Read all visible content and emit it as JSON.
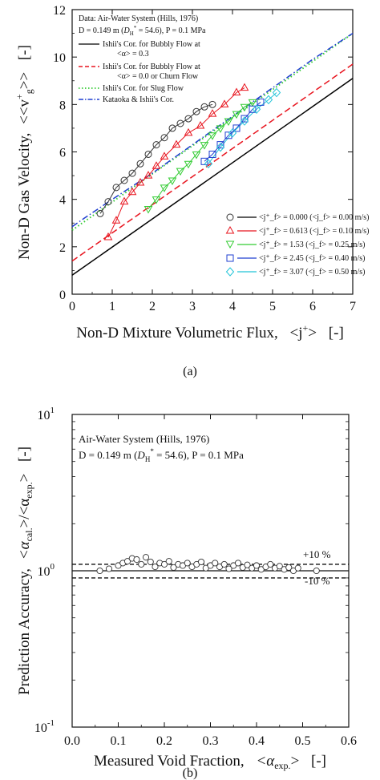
{
  "chart_data": [
    {
      "type": "line",
      "panel_caption": "(a)",
      "xlabel": "Non-D Mixture Volumetric Flux,  <j⁺>  [-]",
      "ylabel": "Non-D Gas Velocity,  <<v⁺_g>>  [-]",
      "xlim": [
        0,
        7
      ],
      "ylim": [
        0,
        12
      ],
      "xticks": [
        "0",
        "1",
        "2",
        "3",
        "4",
        "5",
        "6",
        "7"
      ],
      "yticks": [
        "0",
        "2",
        "4",
        "6",
        "8",
        "10",
        "12"
      ],
      "annotations": [
        "Data: Air-Water System (Hills, 1976)",
        "D = 0.149 m (D*H = 54.6), P = 0.1 MPa"
      ],
      "correlations": [
        {
          "name": "Ishii's Cor. for Bubbly Flow at <α> = 0.3",
          "style": "solid",
          "color": "#000000",
          "x": [
            0,
            7
          ],
          "y": [
            0.8,
            9.1
          ]
        },
        {
          "name": "Ishii's Cor. for Bubbly Flow at <α> = 0.0 or Churn Flow",
          "style": "dashed",
          "color": "#e8141e",
          "x": [
            0,
            7
          ],
          "y": [
            1.4,
            9.7
          ]
        },
        {
          "name": "Ishii's Cor. for Slug Flow",
          "style": "dotted",
          "color": "#33cc33",
          "x": [
            0,
            7
          ],
          "y": [
            2.7,
            11.0
          ]
        },
        {
          "name": "Kataoka & Ishii's Cor.",
          "style": "dashdot",
          "color": "#1f3fd0",
          "x": [
            0,
            0.3,
            1.0,
            2.0,
            3.0,
            4.0,
            5.0,
            6.0,
            7.0
          ],
          "y": [
            2.85,
            3.2,
            4.0,
            5.1,
            6.3,
            7.5,
            8.7,
            9.9,
            11.0
          ]
        }
      ],
      "series": [
        {
          "name": "<j⁺_f> = 0.000 (<j_f> = 0.00 m/s)",
          "marker": "circle",
          "color": "#333333",
          "points": [
            [
              0.7,
              3.4
            ],
            [
              0.9,
              3.9
            ],
            [
              1.1,
              4.5
            ],
            [
              1.3,
              4.8
            ],
            [
              1.5,
              5.1
            ],
            [
              1.7,
              5.5
            ],
            [
              1.9,
              5.9
            ],
            [
              2.1,
              6.3
            ],
            [
              2.3,
              6.6
            ],
            [
              2.5,
              7.0
            ],
            [
              2.7,
              7.2
            ],
            [
              2.9,
              7.4
            ],
            [
              3.1,
              7.7
            ],
            [
              3.3,
              7.9
            ],
            [
              3.5,
              8.0
            ]
          ]
        },
        {
          "name": "<j⁺_f> = 0.613 (<j_f> = 0.10 m/s)",
          "marker": "triangle",
          "color": "#e8141e",
          "points": [
            [
              0.9,
              2.4
            ],
            [
              1.1,
              3.1
            ],
            [
              1.3,
              3.9
            ],
            [
              1.5,
              4.3
            ],
            [
              1.7,
              4.7
            ],
            [
              1.9,
              5.0
            ],
            [
              2.1,
              5.4
            ],
            [
              2.3,
              5.8
            ],
            [
              2.6,
              6.3
            ],
            [
              2.9,
              6.8
            ],
            [
              3.2,
              7.1
            ],
            [
              3.5,
              7.6
            ],
            [
              3.8,
              8.0
            ],
            [
              4.1,
              8.5
            ],
            [
              4.3,
              8.7
            ]
          ]
        },
        {
          "name": "<j⁺_f> = 1.53 (<j_f> = 0.25 m/s)",
          "marker": "triangle-down",
          "color": "#33cc33",
          "points": [
            [
              1.9,
              3.6
            ],
            [
              2.1,
              4.0
            ],
            [
              2.3,
              4.5
            ],
            [
              2.5,
              4.8
            ],
            [
              2.7,
              5.2
            ],
            [
              2.9,
              5.5
            ],
            [
              3.1,
              5.9
            ],
            [
              3.3,
              6.3
            ],
            [
              3.5,
              6.7
            ],
            [
              3.7,
              7.0
            ],
            [
              3.9,
              7.3
            ],
            [
              4.1,
              7.6
            ],
            [
              4.3,
              7.9
            ],
            [
              4.5,
              8.1
            ]
          ]
        },
        {
          "name": "<j⁺_f> = 2.45 (<j_f> = 0.40 m/s)",
          "marker": "square",
          "color": "#1f3fd0",
          "points": [
            [
              3.3,
              5.6
            ],
            [
              3.5,
              5.9
            ],
            [
              3.7,
              6.3
            ],
            [
              3.9,
              6.7
            ],
            [
              4.1,
              7.0
            ],
            [
              4.3,
              7.4
            ],
            [
              4.5,
              7.8
            ],
            [
              4.7,
              8.1
            ]
          ]
        },
        {
          "name": "<j⁺_f> = 3.07 (<j_f> = 0.50 m/s)",
          "marker": "diamond",
          "color": "#22c4d8",
          "points": [
            [
              3.4,
              5.5
            ],
            [
              3.7,
              6.2
            ],
            [
              4.0,
              6.8
            ],
            [
              4.3,
              7.3
            ],
            [
              4.6,
              7.8
            ],
            [
              4.9,
              8.2
            ],
            [
              5.1,
              8.5
            ]
          ]
        }
      ]
    },
    {
      "type": "scatter",
      "panel_caption": "(b)",
      "xlabel": "Measured Void Fraction,  <α_exp.>  [-]",
      "ylabel": "Prediction Accuracy,  <α_cal.>/<α_exp.>  [-]",
      "xlim": [
        0.0,
        0.6
      ],
      "ylim": [
        0.1,
        10
      ],
      "yscale": "log",
      "xticks": [
        "0.0",
        "0.1",
        "0.2",
        "0.3",
        "0.4",
        "0.5",
        "0.6"
      ],
      "yticks": [
        "10⁻¹",
        "10⁰",
        "10¹"
      ],
      "annotations": [
        "Air-Water System (Hills, 1976)",
        "D = 0.149 m (D*H = 54.6), P = 0.1 MPa"
      ],
      "band_labels": [
        "+10 %",
        "-10 %"
      ],
      "reference_lines": [
        1.0,
        1.1,
        0.9
      ],
      "points": [
        [
          0.06,
          1.0
        ],
        [
          0.08,
          1.03
        ],
        [
          0.1,
          1.08
        ],
        [
          0.11,
          1.12
        ],
        [
          0.12,
          1.15
        ],
        [
          0.13,
          1.2
        ],
        [
          0.14,
          1.18
        ],
        [
          0.15,
          1.1
        ],
        [
          0.16,
          1.22
        ],
        [
          0.17,
          1.14
        ],
        [
          0.18,
          1.06
        ],
        [
          0.19,
          1.12
        ],
        [
          0.2,
          1.1
        ],
        [
          0.21,
          1.15
        ],
        [
          0.22,
          1.05
        ],
        [
          0.23,
          1.1
        ],
        [
          0.24,
          1.08
        ],
        [
          0.25,
          1.12
        ],
        [
          0.26,
          1.06
        ],
        [
          0.27,
          1.1
        ],
        [
          0.28,
          1.14
        ],
        [
          0.29,
          1.04
        ],
        [
          0.3,
          1.08
        ],
        [
          0.31,
          1.12
        ],
        [
          0.32,
          1.06
        ],
        [
          0.33,
          1.1
        ],
        [
          0.34,
          1.03
        ],
        [
          0.35,
          1.08
        ],
        [
          0.36,
          1.12
        ],
        [
          0.37,
          1.05
        ],
        [
          0.38,
          1.09
        ],
        [
          0.39,
          1.04
        ],
        [
          0.4,
          1.08
        ],
        [
          0.41,
          1.02
        ],
        [
          0.42,
          1.06
        ],
        [
          0.43,
          1.1
        ],
        [
          0.44,
          1.04
        ],
        [
          0.45,
          1.07
        ],
        [
          0.46,
          1.02
        ],
        [
          0.47,
          1.05
        ],
        [
          0.48,
          1.0
        ],
        [
          0.49,
          1.04
        ],
        [
          0.53,
          1.0
        ]
      ]
    }
  ],
  "panel_a": {
    "data_title": "Data: Air-Water System (Hills, 1976)",
    "cond_D": "D = 0.149 m (",
    "cond_D_sym": "D",
    "cond_D_sub": "H",
    "cond_D_sup": "*",
    "cond_rest": " = 54.6), P = 0.1 MPa",
    "legend_corr": [
      "Ishii's Cor. for Bubbly Flow at",
      "<α> = 0.3",
      "Ishii's Cor. for Bubbly Flow at",
      "<α> = 0.0 or Churn Flow",
      "Ishii's Cor. for Slug Flow",
      "Kataoka & Ishii's Cor."
    ],
    "legend_data": [
      "<j⁺_f> = 0.000 (<j_f> = 0.00 m/s)",
      "<j⁺_f> = 0.613 (<j_f> = 0.10 m/s)",
      "<j⁺_f> = 1.53 (<j_f> = 0.25 m/s)",
      "<j⁺_f> = 2.45 (<j_f> = 0.40 m/s)",
      "<j⁺_f> = 3.07 (<j_f> = 0.50 m/s)"
    ],
    "ylabel_text": "Non-D Gas Velocity,",
    "ylabel_sym": "<<v",
    "ylabel_sup": "+",
    "ylabel_sub": "g",
    "ylabel_close": ">>",
    "ylabel_unit": "[-]",
    "xlabel_text": "Non-D Mixture Volumetric Flux,",
    "xlabel_sym": "<j",
    "xlabel_sup": "+",
    "xlabel_close": ">",
    "xlabel_unit": "[-]",
    "caption": "(a)"
  },
  "panel_b": {
    "title": "Air-Water System (Hills, 1976)",
    "cond_D": "D = 0.149 m (",
    "cond_D_sym": "D",
    "cond_D_sub": "H",
    "cond_D_sup": "*",
    "cond_rest": " = 54.6), P = 0.1 MPa",
    "band_plus": "+10 %",
    "band_minus": "-10 %",
    "ylabel_text": "Prediction Accuracy,",
    "ylabel_sym": "<α",
    "ylabel_sub1": "cal.",
    "ylabel_mid": ">/<α",
    "ylabel_sub2": "exp.",
    "ylabel_close": ">",
    "ylabel_unit": "[-]",
    "xlabel_text": "Measured Void Fraction,",
    "xlabel_sym": "<α",
    "xlabel_sub": "exp.",
    "xlabel_close": ">",
    "xlabel_unit": "[-]",
    "ytick_base": "10",
    "ytick_exps": [
      "-1",
      "0",
      "1"
    ],
    "caption": "(b)"
  }
}
